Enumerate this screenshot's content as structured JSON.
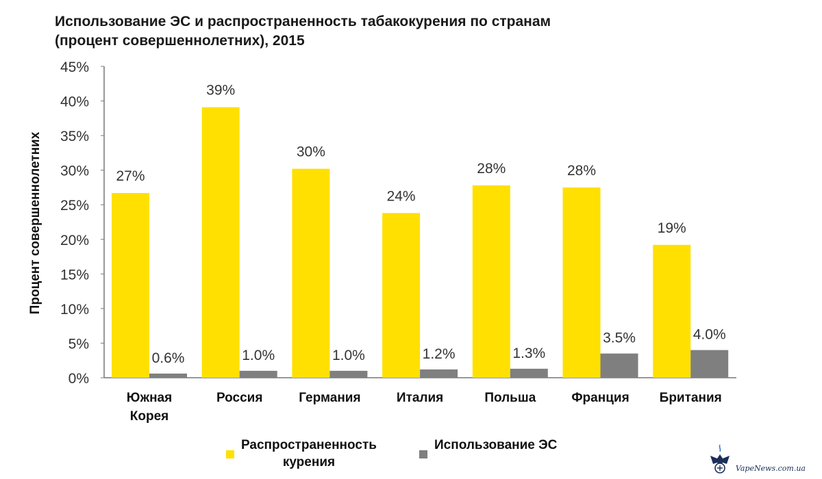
{
  "chart_data": {
    "type": "bar",
    "title_lines": [
      "Использование ЭС и распространенность табакокурения по странам",
      "(процент совершеннолетних), 2015"
    ],
    "ylabel": "Процент совершеннолетних",
    "xlabel": "",
    "ylim": [
      0,
      45
    ],
    "yticks": [
      "0%",
      "5%",
      "10%",
      "15%",
      "20%",
      "25%",
      "30%",
      "35%",
      "40%",
      "45%"
    ],
    "ytick_values": [
      0,
      5,
      10,
      15,
      20,
      25,
      30,
      35,
      40,
      45
    ],
    "categories": [
      [
        "Южная",
        "Корея"
      ],
      [
        "Россия"
      ],
      [
        "Германия"
      ],
      [
        "Италия"
      ],
      [
        "Польша"
      ],
      [
        "Франция"
      ],
      [
        "Британия"
      ]
    ],
    "series": [
      {
        "name": "Распространенность курения",
        "legend_lines": [
          "Распространенность",
          "курения"
        ],
        "color": "#FFE000",
        "values": [
          26.7,
          39.1,
          30.2,
          23.8,
          27.8,
          27.5,
          19.2
        ],
        "labels": [
          "27%",
          "39%",
          "30%",
          "24%",
          "28%",
          "28%",
          "19%"
        ]
      },
      {
        "name": "Использование ЭС",
        "legend_lines": [
          "Использование ЭС"
        ],
        "color": "#7F7F7F",
        "values": [
          0.6,
          1.0,
          1.0,
          1.2,
          1.3,
          3.5,
          4.0
        ],
        "labels": [
          "0.6%",
          "1.0%",
          "1.0%",
          "1.2%",
          "1.3%",
          "3.5%",
          "4.0%"
        ]
      }
    ],
    "grid": false,
    "legend_position": "bottom"
  },
  "watermark": {
    "text": "VapeNews.com.ua"
  }
}
